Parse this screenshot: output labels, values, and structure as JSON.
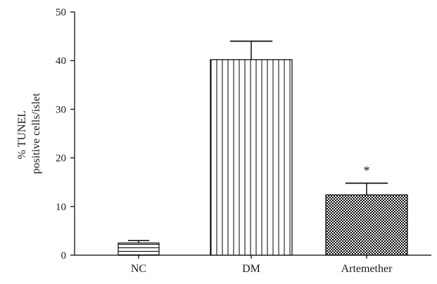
{
  "chart_data": {
    "type": "bar",
    "title": "",
    "xlabel": "",
    "ylabel_lines": [
      "% TUNEL",
      "positive cells/islet"
    ],
    "ylim": [
      0,
      50
    ],
    "yticks": [
      0,
      10,
      20,
      30,
      40,
      50
    ],
    "categories": [
      "NC",
      "DM",
      "Artemether"
    ],
    "values": [
      2.5,
      40.2,
      12.4
    ],
    "errors": [
      0.5,
      3.8,
      2.4
    ],
    "fills": [
      "horizontal-stripes",
      "vertical-stripes",
      "checkerboard"
    ],
    "annotations": [
      {
        "category": "Artemether",
        "text": "*"
      }
    ],
    "grid": false,
    "legend": "none"
  }
}
